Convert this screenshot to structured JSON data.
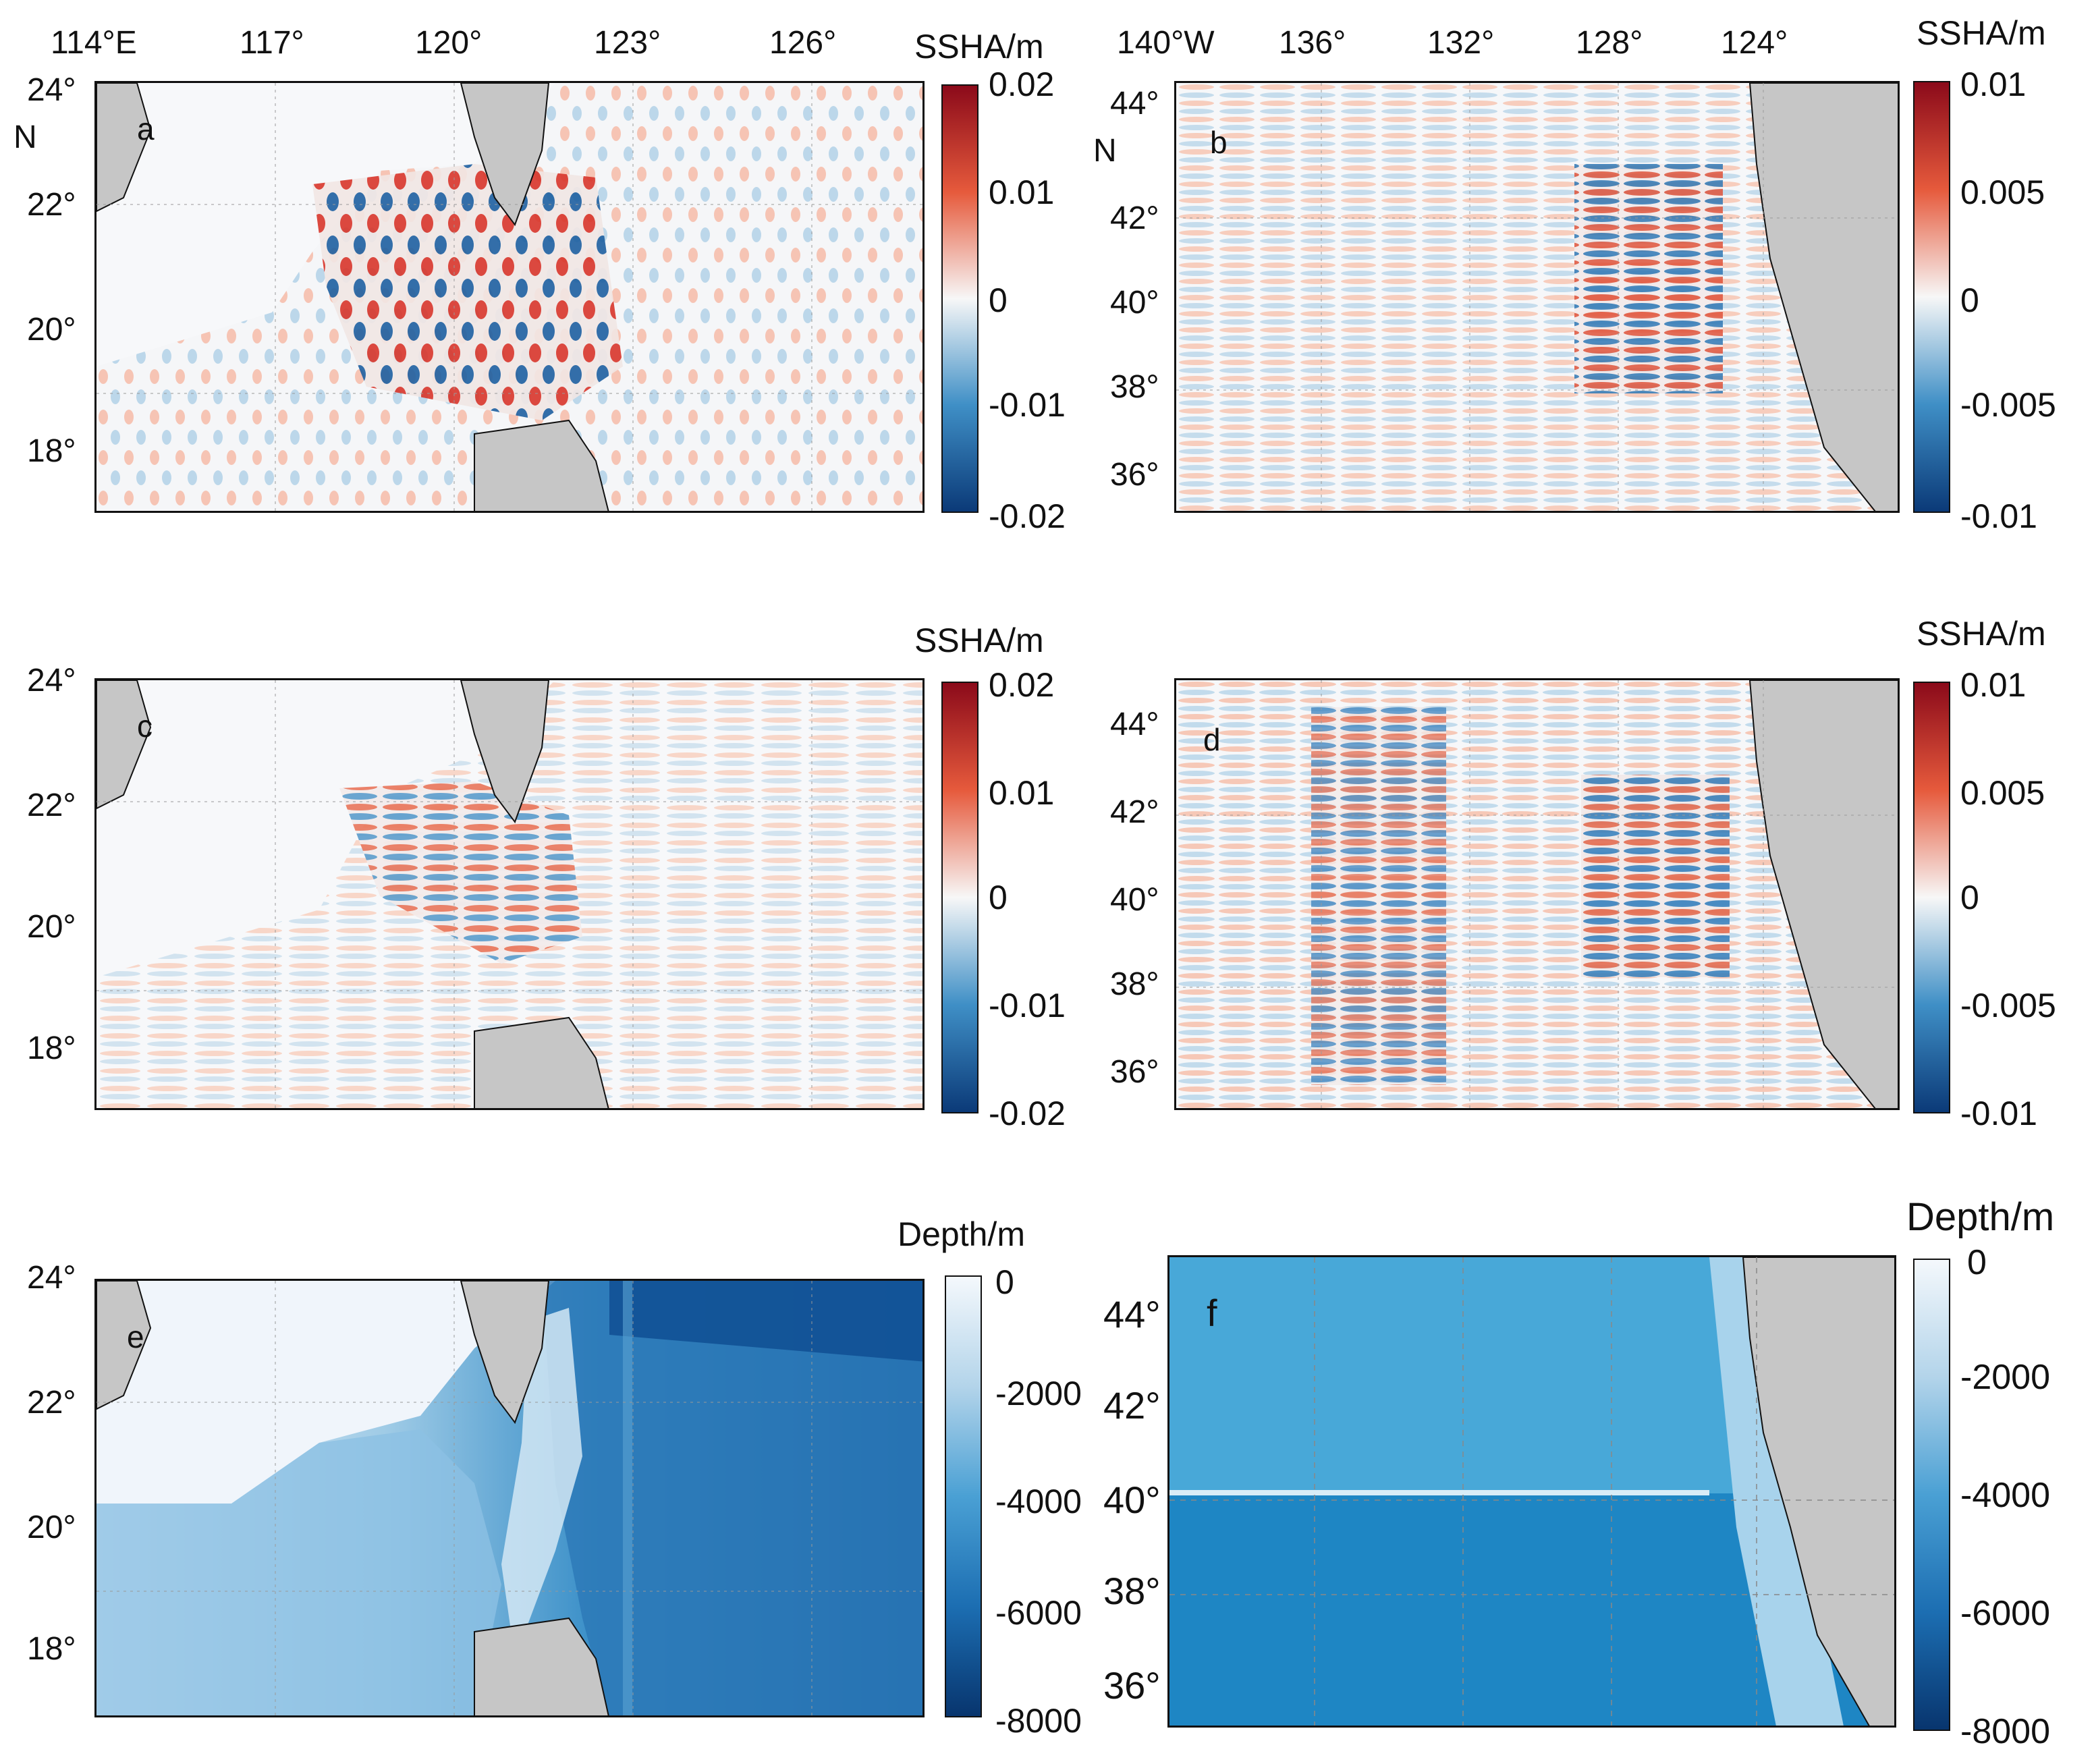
{
  "figure": {
    "top_lon_labels_left": [
      "114°E",
      "117°",
      "120°",
      "123°",
      "126°"
    ],
    "top_lon_labels_right": [
      "140°W",
      "136°",
      "132°",
      "128°",
      "124°"
    ],
    "lat_labels_left": [
      "24°",
      "22°",
      "20°",
      "18°"
    ],
    "lat_labels_right": [
      "44°",
      "42°",
      "40°",
      "38°",
      "36°"
    ],
    "north_label": "N"
  },
  "panels": [
    {
      "id": "a",
      "label": "a",
      "colorbar_title": "SSHA/m",
      "colorbar_ticks": [
        "0.02",
        "0.01",
        "0",
        "-0.01",
        "-0.02"
      ],
      "colormap": "diverging"
    },
    {
      "id": "b",
      "label": "b",
      "colorbar_title": "SSHA/m",
      "colorbar_ticks": [
        "0.01",
        "0.005",
        "0",
        "-0.005",
        "-0.01"
      ],
      "colormap": "diverging"
    },
    {
      "id": "c",
      "label": "c",
      "colorbar_title": "SSHA/m",
      "colorbar_ticks": [
        "0.02",
        "0.01",
        "0",
        "-0.01",
        "-0.02"
      ],
      "colormap": "diverging"
    },
    {
      "id": "d",
      "label": "d",
      "colorbar_title": "SSHA/m",
      "colorbar_ticks": [
        "0.01",
        "0.005",
        "0",
        "-0.005",
        "-0.01"
      ],
      "colormap": "diverging"
    },
    {
      "id": "e",
      "label": "e",
      "colorbar_title": "Depth/m",
      "colorbar_ticks": [
        "0",
        "-2000",
        "-4000",
        "-6000",
        "-8000"
      ],
      "colormap": "blues"
    },
    {
      "id": "f",
      "label": "f",
      "colorbar_title": "Depth/m",
      "colorbar_ticks": [
        "0",
        "-2000",
        "-4000",
        "-6000",
        "-8000"
      ],
      "colormap": "blues"
    }
  ],
  "colors": {
    "land": "#c6c6c6",
    "diverging_max": "#8b0a1a",
    "diverging_mid": "#f7f7f7",
    "diverging_min": "#0b3a78",
    "depth_shallow": "#f4f8fc",
    "depth_deep": "#08356e"
  }
}
